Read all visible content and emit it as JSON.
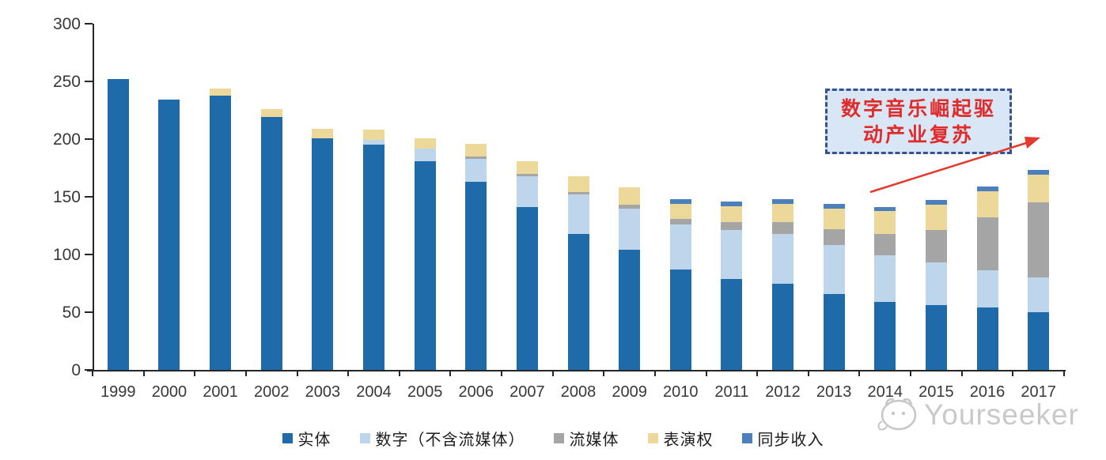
{
  "chart_data": {
    "type": "bar",
    "variant": "stacked",
    "title": "",
    "xlabel": "",
    "ylabel": "",
    "categories": [
      "1999",
      "2000",
      "2001",
      "2002",
      "2003",
      "2004",
      "2005",
      "2006",
      "2007",
      "2008",
      "2009",
      "2010",
      "2011",
      "2012",
      "2013",
      "2014",
      "2015",
      "2016",
      "2017"
    ],
    "series": [
      {
        "name": "实体",
        "color": "#1f6ba9",
        "values": [
          252,
          234,
          238,
          219,
          201,
          195,
          181,
          163,
          141,
          118,
          104,
          87,
          79,
          75,
          66,
          59,
          56,
          54,
          50
        ]
      },
      {
        "name": "数字（不含流媒体）",
        "color": "#bdd6ec",
        "values": [
          0,
          0,
          0,
          0,
          0,
          4,
          11,
          20,
          27,
          34,
          36,
          39,
          42,
          43,
          42,
          40,
          37,
          32,
          30
        ]
      },
      {
        "name": "流媒体",
        "color": "#a5a5a5",
        "values": [
          0,
          0,
          0,
          0,
          0,
          0,
          0,
          2,
          2,
          2,
          3,
          5,
          7,
          10,
          14,
          19,
          28,
          46,
          65
        ]
      },
      {
        "name": "表演权",
        "color": "#ecd899",
        "values": [
          0,
          0,
          6,
          7,
          8,
          9,
          9,
          11,
          11,
          14,
          15,
          13,
          14,
          16,
          18,
          20,
          22,
          23,
          24
        ]
      },
      {
        "name": "同步收入",
        "color": "#4c80bd",
        "values": [
          0,
          0,
          0,
          0,
          0,
          0,
          0,
          0,
          0,
          0,
          0,
          4,
          4,
          4,
          4,
          3,
          4,
          4,
          4
        ]
      }
    ],
    "y_axis": {
      "min": 0,
      "max": 300,
      "step": 50,
      "ticks": [
        0,
        50,
        100,
        150,
        200,
        250,
        300
      ]
    },
    "grid": false,
    "legend_position": "bottom"
  },
  "annotation": {
    "lines": [
      "数字音乐崛起驱",
      "动产业复苏"
    ],
    "text_color": "#e02b2b",
    "box_fill": "#d9e6f5",
    "border_color": "#35538f",
    "arrow_color": "#e6392e"
  },
  "watermark": {
    "text": "Yourseeker",
    "color": "#c9c9c9",
    "logo": "mascot-face-icon"
  }
}
